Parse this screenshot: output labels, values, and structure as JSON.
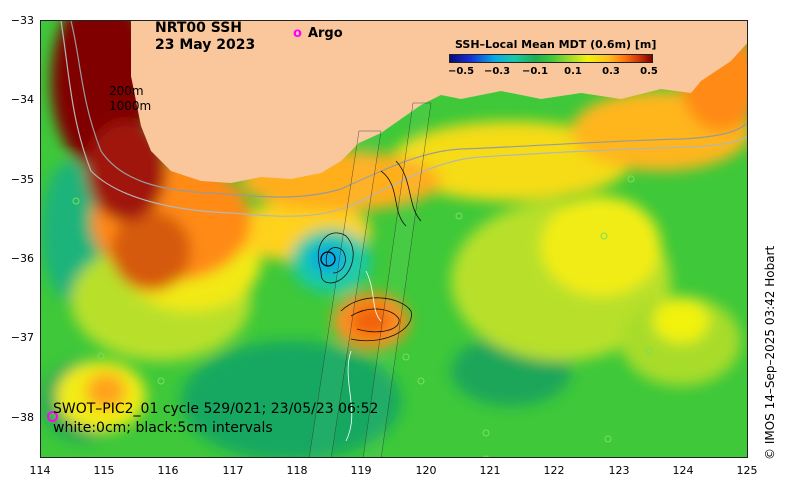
{
  "title": {
    "line1": "NRT00 SSH",
    "line2": "23 May 2023"
  },
  "argo_legend": {
    "marker": "o",
    "label": "Argo"
  },
  "contour_legend": {
    "line1": "200m",
    "line2": "1000m"
  },
  "colorbar": {
    "title": "SSH–Local Mean MDT (0.6m) [m]",
    "ticks": [
      "−0.5",
      "−0.3",
      "−0.1",
      "0.1",
      "0.3",
      "0.5"
    ]
  },
  "swot": {
    "line1": "SWOT–PIC2_01 cycle 529/021; 23/05/23 06:52",
    "line2": "white:0cm; black:5cm intervals"
  },
  "credit": "© IMOS 14–Sep–2025 03:42 Hobart",
  "axes": {
    "x_ticks": [
      "114",
      "115",
      "116",
      "117",
      "118",
      "119",
      "120",
      "121",
      "122",
      "123",
      "124",
      "125"
    ],
    "y_ticks": [
      "−33",
      "−34",
      "−35",
      "−36",
      "−37",
      "−38"
    ]
  },
  "colors": {
    "land": "#f9c79b",
    "argo": "#ff00ff",
    "ocean_mean": "#3ec83a",
    "high_anomaly": "#800000",
    "low_anomaly": "#0aa7e6"
  }
}
